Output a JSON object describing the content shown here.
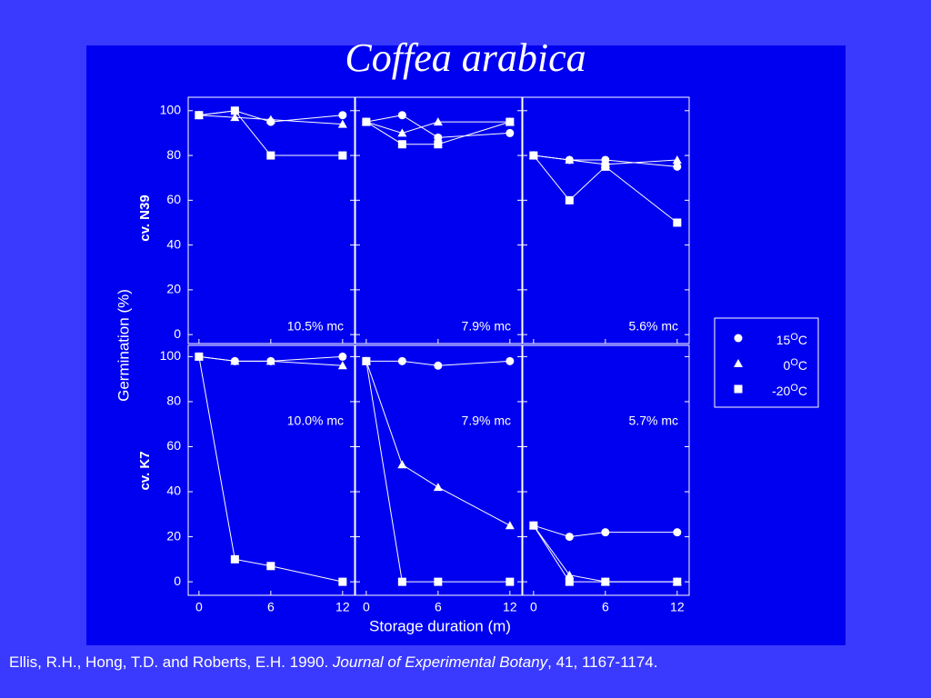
{
  "title": "Coffea arabica",
  "y_label": "Germination (%)",
  "x_label": "Storage duration (m)",
  "row_labels": [
    "cv. N39",
    "cv. K7"
  ],
  "legend_unit_sup": "O",
  "legend_unit": "C",
  "citation": {
    "authors": "Ellis, R.H., Hong, T.D. and Roberts, E.H. 1990.",
    "journal": "Journal of Experimental Botany",
    "rest": ", 41, 1167-1174."
  },
  "chart_data": [
    {
      "type": "line",
      "annotation": "10.5% mc",
      "x": [
        0,
        3,
        6,
        12
      ],
      "xlim": [
        -0.9,
        13
      ],
      "ylim": [
        -4,
        106
      ],
      "xticks": [
        0,
        6,
        12
      ],
      "yticks": [
        0,
        20,
        40,
        60,
        80,
        100
      ],
      "series": [
        {
          "name": "15",
          "marker": "circle",
          "color": "#ffffff",
          "values": [
            98,
            100,
            95,
            98
          ]
        },
        {
          "name": "0",
          "marker": "triangle",
          "color": "#ffffff",
          "values": [
            98,
            97,
            96,
            94
          ]
        },
        {
          "name": "-20",
          "marker": "square",
          "color": "#ffffff",
          "values": [
            98,
            100,
            80,
            80
          ]
        }
      ]
    },
    {
      "type": "line",
      "annotation": "7.9% mc",
      "x": [
        0,
        3,
        6,
        12
      ],
      "xlim": [
        -0.9,
        13
      ],
      "ylim": [
        -4,
        106
      ],
      "xticks": [
        0,
        6,
        12
      ],
      "yticks": [
        0,
        20,
        40,
        60,
        80,
        100
      ],
      "series": [
        {
          "name": "15",
          "marker": "circle",
          "color": "#ffffff",
          "values": [
            95,
            98,
            88,
            90
          ]
        },
        {
          "name": "0",
          "marker": "triangle",
          "color": "#ffffff",
          "values": [
            95,
            90,
            95,
            95
          ]
        },
        {
          "name": "-20",
          "marker": "square",
          "color": "#ffffff",
          "values": [
            95,
            85,
            85,
            95
          ]
        }
      ]
    },
    {
      "type": "line",
      "annotation": "5.6% mc",
      "x": [
        0,
        3,
        6,
        12
      ],
      "xlim": [
        -0.9,
        13
      ],
      "ylim": [
        -4,
        106
      ],
      "xticks": [
        0,
        6,
        12
      ],
      "yticks": [
        0,
        20,
        40,
        60,
        80,
        100
      ],
      "series": [
        {
          "name": "15",
          "marker": "circle",
          "color": "#ffffff",
          "values": [
            80,
            78,
            78,
            75
          ]
        },
        {
          "name": "0",
          "marker": "triangle",
          "color": "#ffffff",
          "values": [
            80,
            78,
            76,
            78
          ]
        },
        {
          "name": "-20",
          "marker": "square",
          "color": "#ffffff",
          "values": [
            80,
            60,
            75,
            50
          ]
        }
      ]
    },
    {
      "type": "line",
      "annotation": "10.0% mc",
      "x": [
        0,
        3,
        6,
        12
      ],
      "xlim": [
        -0.9,
        13
      ],
      "ylim": [
        -6,
        105
      ],
      "xticks": [
        0,
        6,
        12
      ],
      "yticks": [
        0,
        20,
        40,
        60,
        80,
        100
      ],
      "series": [
        {
          "name": "15",
          "marker": "circle",
          "color": "#ffffff",
          "values": [
            100,
            98,
            98,
            100
          ]
        },
        {
          "name": "0",
          "marker": "triangle",
          "color": "#ffffff",
          "values": [
            100,
            98,
            98,
            96
          ]
        },
        {
          "name": "-20",
          "marker": "square",
          "color": "#ffffff",
          "values": [
            100,
            10,
            7,
            0
          ]
        }
      ]
    },
    {
      "type": "line",
      "annotation": "7.9% mc",
      "x": [
        0,
        3,
        6,
        12
      ],
      "xlim": [
        -0.9,
        13
      ],
      "ylim": [
        -6,
        105
      ],
      "xticks": [
        0,
        6,
        12
      ],
      "yticks": [
        0,
        20,
        40,
        60,
        80,
        100
      ],
      "series": [
        {
          "name": "15",
          "marker": "circle",
          "color": "#ffffff",
          "values": [
            98,
            98,
            96,
            98
          ]
        },
        {
          "name": "0",
          "marker": "triangle",
          "color": "#ffffff",
          "values": [
            98,
            52,
            42,
            25
          ]
        },
        {
          "name": "-20",
          "marker": "square",
          "color": "#ffffff",
          "values": [
            98,
            0,
            0,
            0
          ]
        }
      ]
    },
    {
      "type": "line",
      "annotation": "5.7% mc",
      "x": [
        0,
        3,
        6,
        12
      ],
      "xlim": [
        -0.9,
        13
      ],
      "ylim": [
        -6,
        105
      ],
      "xticks": [
        0,
        6,
        12
      ],
      "yticks": [
        0,
        20,
        40,
        60,
        80,
        100
      ],
      "series": [
        {
          "name": "15",
          "marker": "circle",
          "color": "#ffffff",
          "values": [
            25,
            20,
            22,
            22
          ]
        },
        {
          "name": "0",
          "marker": "triangle",
          "color": "#ffffff",
          "values": [
            25,
            3,
            0,
            0
          ]
        },
        {
          "name": "-20",
          "marker": "square",
          "color": "#ffffff",
          "values": [
            25,
            0,
            0,
            0
          ]
        }
      ]
    }
  ]
}
